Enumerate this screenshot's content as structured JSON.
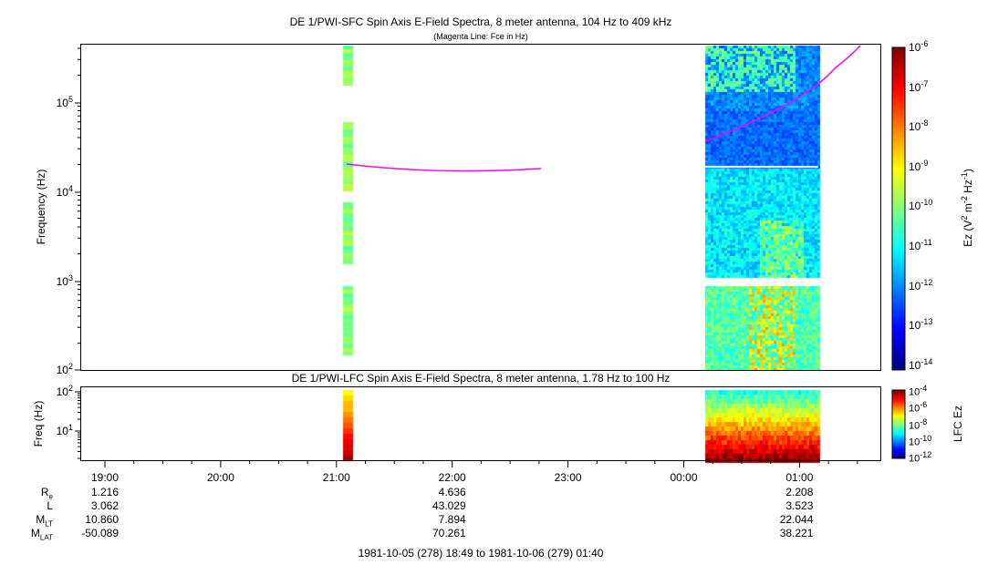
{
  "chart_data": [
    {
      "type": "heatmap",
      "title": "DE 1/PWI-SFC  Spin Axis E-Field Spectra, 8 meter antenna, 104 Hz to 409 kHz",
      "subtitle": "(Magenta Line: Fce in Hz)",
      "ylabel": "Frequency (Hz)",
      "yscale": "log",
      "ylim": [
        100,
        409000
      ],
      "yticks": [
        {
          "base": "10",
          "exp": "5"
        },
        {
          "base": "10",
          "exp": "4"
        },
        {
          "base": "10",
          "exp": "3"
        },
        {
          "base": "10",
          "exp": "2"
        }
      ],
      "colorbar": {
        "label": "Ez (V",
        "label_sup1": "2",
        "label_mid": " m",
        "label_sup2": "-2",
        "label_mid2": " Hz",
        "label_sup3": "-1",
        "label_end": ")",
        "ticks": [
          "-6",
          "-7",
          "-8",
          "-9",
          "-10",
          "-11",
          "-12",
          "-13",
          "-14"
        ],
        "range": [
          1e-14,
          1e-06
        ]
      },
      "data_intervals": [
        "21:05-21:08",
        "00:13-01:09"
      ],
      "fce_line_color": "#ff00ff"
    },
    {
      "type": "heatmap",
      "title": "DE 1/PWI-LFC  Spin Axis E-Field Spectra, 8 meter antenna, 1.78 Hz to 100 Hz",
      "ylabel": "Freq (Hz)",
      "yscale": "log",
      "ylim": [
        1.78,
        100
      ],
      "yticks": [
        {
          "base": "10",
          "exp": "2"
        },
        {
          "base": "10",
          "exp": "1"
        }
      ],
      "colorbar": {
        "label": "LFC Ez",
        "ticks": [
          "-4",
          "-6",
          "-8",
          "-10",
          "-12"
        ],
        "range": [
          1e-12,
          0.0001
        ]
      }
    }
  ],
  "xaxis": {
    "ticks": [
      "19:00",
      "20:00",
      "21:00",
      "22:00",
      "23:00",
      "00:00",
      "01:00"
    ]
  },
  "ephemeris": {
    "labels": [
      {
        "main": "R",
        "sub": "e"
      },
      {
        "main": "L",
        "sub": ""
      },
      {
        "main": "M",
        "sub": "LT"
      },
      {
        "main": "M",
        "sub": "LAT"
      }
    ],
    "columns": [
      {
        "time": "19:00",
        "values": [
          "1.216",
          "3.062",
          "10.860",
          "-50.089"
        ]
      },
      {
        "time": "22:00",
        "values": [
          "4.636",
          "43.029",
          "7.894",
          "70.261"
        ]
      },
      {
        "time": "01:00",
        "values": [
          "2.208",
          "3.523",
          "22.044",
          "38.221"
        ]
      }
    ]
  },
  "time_range": "1981-10-05 (278) 18:49 to 1981-10-06 (279) 01:40"
}
